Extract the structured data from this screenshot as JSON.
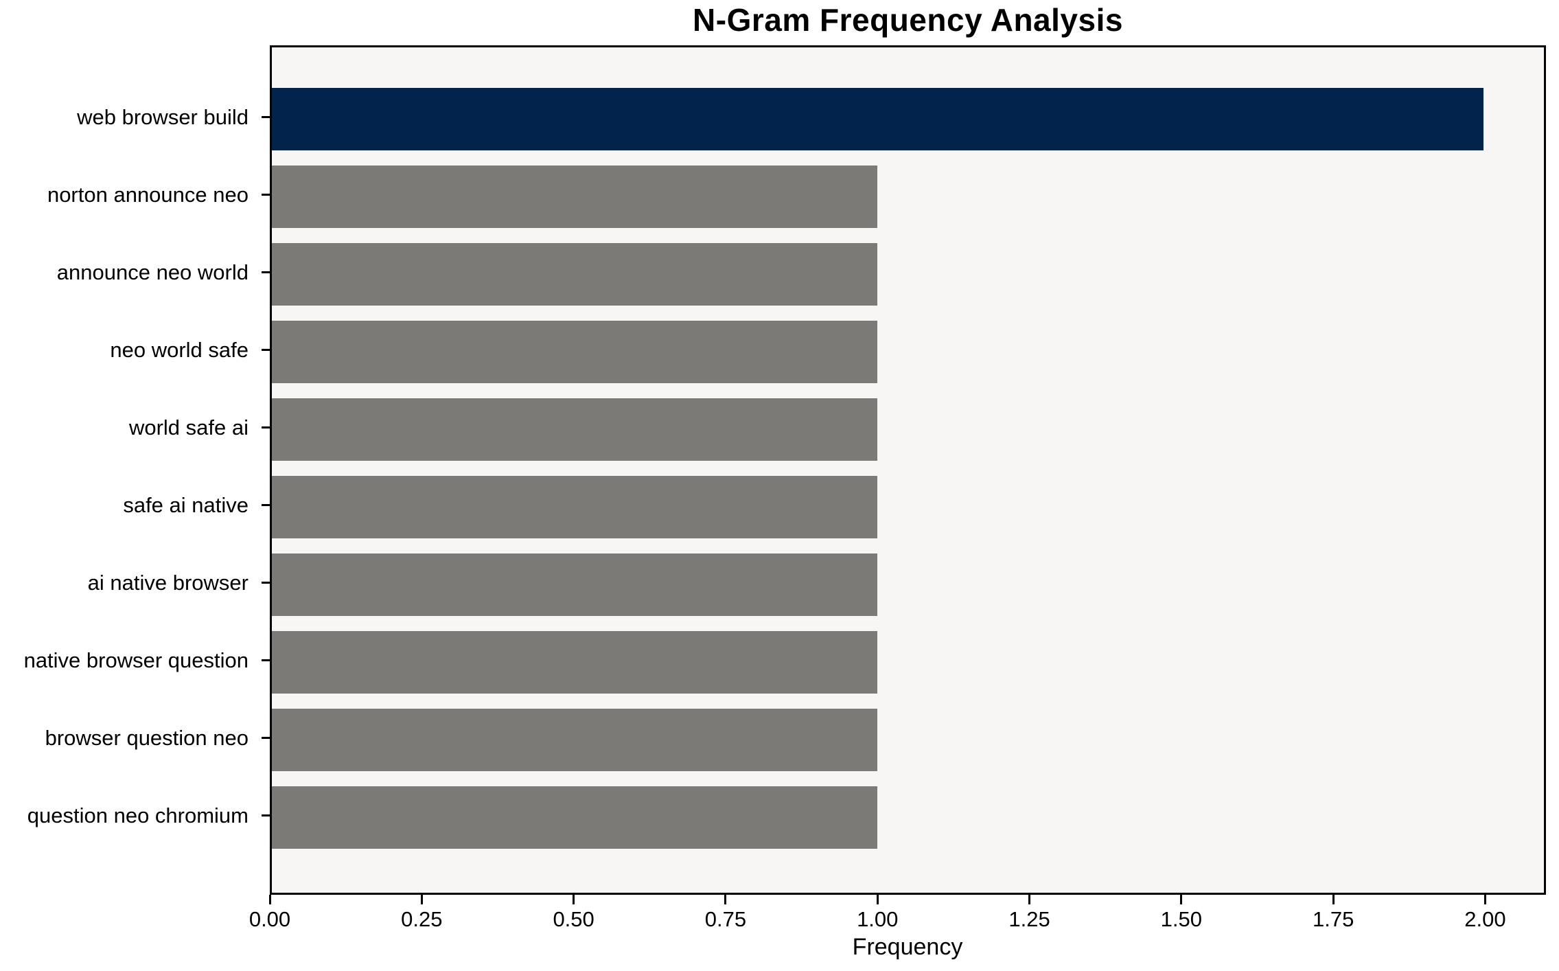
{
  "title": "N-Gram Frequency Analysis",
  "chart_data": {
    "type": "bar",
    "orientation": "horizontal",
    "title": "N-Gram Frequency Analysis",
    "xlabel": "Frequency",
    "ylabel": "",
    "categories": [
      "web browser build",
      "norton announce neo",
      "announce neo world",
      "neo world safe",
      "world safe ai",
      "safe ai native",
      "ai native browser",
      "native browser question",
      "browser question neo",
      "question neo chromium"
    ],
    "values": [
      2,
      1,
      1,
      1,
      1,
      1,
      1,
      1,
      1,
      1
    ],
    "bar_colors": [
      "#02234c",
      "#7b7a77",
      "#7b7a77",
      "#7b7a77",
      "#7b7a77",
      "#7b7a77",
      "#7b7a77",
      "#7b7a77",
      "#7b7a77",
      "#7b7a77"
    ],
    "xlim": [
      0,
      2.1
    ],
    "xtick_values": [
      0,
      0.25,
      0.5,
      0.75,
      1.0,
      1.25,
      1.5,
      1.75,
      2.0
    ],
    "xtick_labels": [
      "0.00",
      "0.25",
      "0.50",
      "0.75",
      "1.00",
      "1.25",
      "1.50",
      "1.75",
      "2.00"
    ],
    "grid": false,
    "legend": false,
    "plot_background": "#f7f6f5",
    "figure_background": "#ffffff",
    "highlight_color": "#02234c",
    "default_bar_color": "#7b7a77"
  }
}
